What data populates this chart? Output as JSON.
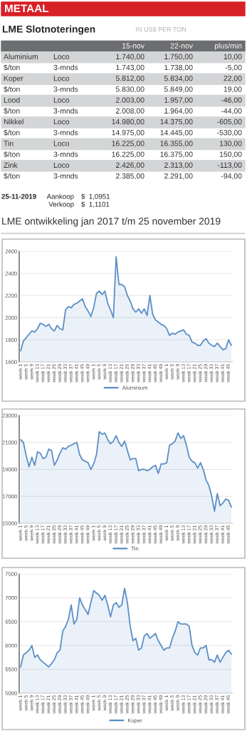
{
  "chart_data": [
    {
      "type": "other",
      "title": "METAAL",
      "subtitle": "LME Slotnoteringen",
      "annotations": [
        "IN US$ PER TON",
        "15-nov",
        "22-nov",
        "plus/min",
        "Aluminium",
        "Loco",
        "1.740,00",
        "1.750,00",
        "10,00",
        "$/ton",
        "3-mnds",
        "1.743,00",
        "1.738,00",
        "-5,00",
        "Koper",
        "Loco",
        "5.812,00",
        "5.834,00",
        "22,00",
        "$/ton",
        "3-mnds",
        "5.830,00",
        "5.849,00",
        "19,00",
        "Lood",
        "Loco",
        "2.003,00",
        "1.957,00",
        "-46,00",
        "$/ton",
        "3-mnds",
        "2.008,00",
        "1.964,00",
        "-44,00",
        "Nikkel",
        "Loco",
        "14.980,00",
        "14.375,00",
        "-605,00",
        "$/ton",
        "3-mnds",
        "14.975,00",
        "14.445,00",
        "-530,00",
        "Tin",
        "Loco",
        "16.225,00",
        "16.355,00",
        "130,00",
        "$/ton",
        "3-mnds",
        "16.225,00",
        "16.375,00",
        "150,00",
        "Zink",
        "Loco",
        "2.426,00",
        "2.313,00",
        "-113,00",
        "$/ton",
        "3-mnds",
        "2.385,00",
        "2.291,00",
        "-94,00",
        "25-11-2019",
        "Aankoop",
        "$  1,0951",
        "Verkoop",
        "$  1,1101",
        "LME ontwikkeling jan 2017 t/m 25 november 2019"
      ]
    },
    {
      "type": "area",
      "grid": "y",
      "legend": "bottom",
      "ylim": [
        1600,
        2600
      ],
      "yticks": [
        1600,
        1800,
        2000,
        2200,
        2400,
        2600
      ],
      "categories": [
        "week 1",
        null,
        "week 5",
        null,
        "week 9",
        null,
        "week 13",
        null,
        "week 17",
        null,
        "week 21",
        null,
        "week 25",
        null,
        "week 29",
        null,
        "week 33",
        null,
        "week 37",
        null,
        "week 41",
        null,
        "week 45",
        null,
        "week 49",
        null,
        "week 1",
        null,
        "week 5",
        null,
        "week 9",
        null,
        "week 13",
        null,
        "week 17",
        null,
        "week 21",
        null,
        "week 25",
        null,
        "week 29",
        null,
        "week 33",
        null,
        "week 37",
        null,
        "week 41",
        null,
        "week 45",
        null,
        "week 49",
        null,
        "week 1",
        null,
        "week 5",
        null,
        "week 9",
        null,
        "week 13",
        null,
        "week 17",
        null,
        "week 21",
        null,
        "week 25",
        null,
        "week 29",
        null,
        "week 33",
        null,
        "week 37",
        null,
        "week 41",
        null,
        "week 45",
        null
      ],
      "series": [
        {
          "name": "Aluminium",
          "color": "#5b8fc7",
          "values": [
            1700,
            1790,
            1820,
            1850,
            1880,
            1870,
            1900,
            1950,
            1940,
            1920,
            1940,
            1900,
            1880,
            1930,
            1900,
            1890,
            2070,
            2100,
            2090,
            2120,
            2130,
            2150,
            2170,
            2100,
            2060,
            2010,
            2090,
            2220,
            2240,
            2210,
            2240,
            2130,
            2070,
            2000,
            2550,
            2300,
            2300,
            2280,
            2200,
            2150,
            2080,
            2050,
            2080,
            2040,
            2080,
            2020,
            2200,
            2030,
            1980,
            1960,
            1940,
            1930,
            1900,
            1840,
            1860,
            1850,
            1870,
            1880,
            1890,
            1850,
            1840,
            1780,
            1770,
            1750,
            1750,
            1790,
            1810,
            1770,
            1750,
            1740,
            1770,
            1740,
            1710,
            1720,
            1800,
            1750
          ]
        }
      ]
    },
    {
      "type": "area",
      "grid": "y",
      "legend": "bottom",
      "ylim": [
        15000,
        23000
      ],
      "yticks": [
        15000,
        17000,
        19000,
        21000,
        23000
      ],
      "categories": [
        "week 1",
        null,
        "week 5",
        null,
        "week 9",
        null,
        "week 13",
        null,
        "week 17",
        null,
        "week 21",
        null,
        "week 25",
        null,
        "week 29",
        null,
        "week 33",
        null,
        "week 37",
        null,
        "week 41",
        null,
        "week 45",
        null,
        "week 49",
        null,
        "week 1",
        null,
        "week 5",
        null,
        "week 9",
        null,
        "week 13",
        null,
        "week 17",
        null,
        "week 21",
        null,
        "week 25",
        null,
        "week 29",
        null,
        "week 33",
        null,
        "week 37",
        null,
        "week 41",
        null,
        "week 45",
        null,
        "week 49",
        null,
        "week 1",
        null,
        "week 5",
        null,
        "week 9",
        null,
        "week 13",
        null,
        "week 17",
        null,
        "week 21",
        null,
        "week 25",
        null,
        "week 29",
        null,
        "week 33",
        null,
        "week 37",
        null,
        "week 41",
        null,
        "week 45",
        null
      ],
      "series": [
        {
          "name": "Tin",
          "color": "#5b8fc7",
          "values": [
            21200,
            21000,
            20000,
            19200,
            19900,
            19300,
            20300,
            20200,
            19800,
            19900,
            20500,
            20400,
            19300,
            19700,
            20200,
            20600,
            20500,
            20700,
            20800,
            20900,
            21000,
            20100,
            19700,
            19600,
            19500,
            19000,
            19400,
            20100,
            21800,
            21600,
            21700,
            21200,
            20900,
            21100,
            21500,
            21000,
            20700,
            21100,
            20400,
            19700,
            19800,
            19800,
            18900,
            19000,
            19000,
            18900,
            19000,
            19200,
            19300,
            18700,
            19400,
            19400,
            19500,
            20800,
            20900,
            21100,
            21700,
            21300,
            21500,
            20800,
            19900,
            19600,
            19500,
            19100,
            19500,
            19000,
            18200,
            17800,
            17000,
            15900,
            17200,
            16300,
            16500,
            16800,
            16700,
            16200
          ]
        }
      ]
    },
    {
      "type": "area",
      "grid": "y",
      "legend": "bottom",
      "ylim": [
        5000,
        7500
      ],
      "yticks": [
        5000,
        5500,
        6000,
        6500,
        7000,
        7500
      ],
      "categories": [
        "week 1",
        null,
        "week 5",
        null,
        "week 9",
        null,
        "week 13",
        null,
        "week 17",
        null,
        "week 21",
        null,
        "week 25",
        null,
        "week 29",
        null,
        "week 33",
        null,
        "week 37",
        null,
        "week 41",
        null,
        "week 45",
        null,
        "week 49",
        null,
        "week 1",
        null,
        "week 5",
        null,
        "week 9",
        null,
        "week 13",
        null,
        "week 17",
        null,
        "week 21",
        null,
        "week 25",
        null,
        "week 29",
        null,
        "week 33",
        null,
        "week 37",
        null,
        "week 41",
        null,
        "week 45",
        null,
        "week 49",
        null,
        "week 1",
        null,
        "week 5",
        null,
        "week 9",
        null,
        "week 13",
        null,
        "week 17",
        null,
        "week 21",
        null,
        "week 25",
        null,
        "week 29",
        null,
        "week 33",
        null,
        "week 37",
        null,
        "week 41",
        null,
        "week 45",
        null
      ],
      "series": [
        {
          "name": "Koper",
          "color": "#5b8fc7",
          "values": [
            5550,
            5800,
            5850,
            5900,
            6000,
            5750,
            5800,
            5700,
            5650,
            5600,
            5550,
            5620,
            5700,
            5850,
            5900,
            6300,
            6400,
            6550,
            6850,
            6450,
            6550,
            7000,
            6850,
            6750,
            6650,
            6900,
            7150,
            7100,
            7050,
            6950,
            7050,
            6850,
            6600,
            6850,
            6900,
            6800,
            6850,
            7200,
            6900,
            6400,
            6100,
            6150,
            5900,
            5950,
            6200,
            6250,
            6150,
            6200,
            6250,
            6100,
            6000,
            5900,
            5950,
            5950,
            6150,
            6300,
            6500,
            6450,
            6450,
            6450,
            6400,
            6000,
            5850,
            5800,
            5950,
            5950,
            6000,
            5700,
            5700,
            5650,
            5800,
            5650,
            5750,
            5850,
            5900,
            5820
          ]
        }
      ]
    }
  ]
}
